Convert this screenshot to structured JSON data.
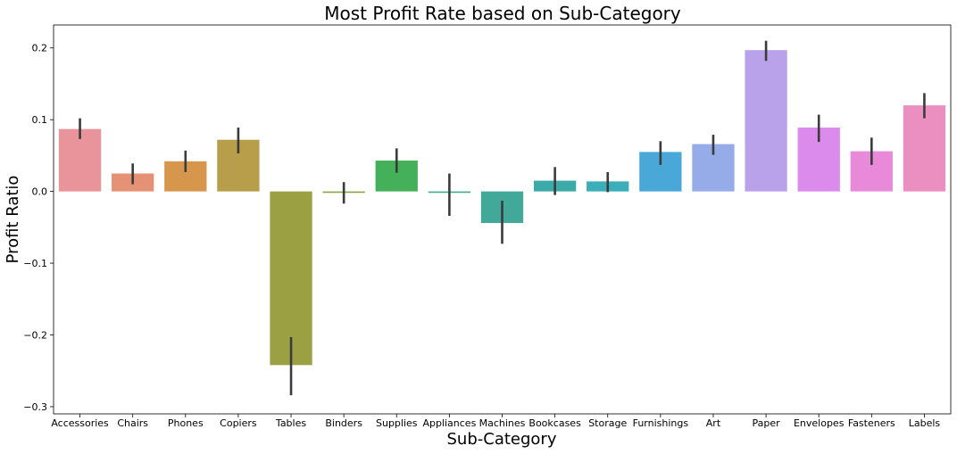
{
  "chart_data": {
    "type": "bar",
    "title": "Most Profit Rate based on Sub-Category",
    "xlabel": "Sub-Category",
    "ylabel": "Profit Ratio",
    "ylim": [
      -0.31,
      0.232
    ],
    "yticks": [
      -0.3,
      -0.2,
      -0.1,
      0.0,
      0.1,
      0.2
    ],
    "ytick_labels": [
      "−0.3",
      "−0.2",
      "−0.1",
      "0.0",
      "0.1",
      "0.2"
    ],
    "grid": false,
    "categories": [
      "Accessories",
      "Chairs",
      "Phones",
      "Copiers",
      "Tables",
      "Binders",
      "Supplies",
      "Appliances",
      "Machines",
      "Bookcases",
      "Storage",
      "Furnishings",
      "Art",
      "Paper",
      "Envelopes",
      "Fasteners",
      "Labels"
    ],
    "values": [
      0.087,
      0.025,
      0.042,
      0.072,
      -0.242,
      -0.002,
      0.043,
      -0.002,
      -0.044,
      0.015,
      0.014,
      0.055,
      0.066,
      0.197,
      0.089,
      0.056,
      0.12
    ],
    "error_low": [
      0.073,
      0.01,
      0.027,
      0.053,
      -0.284,
      -0.017,
      0.026,
      -0.034,
      -0.073,
      -0.005,
      -0.001,
      0.037,
      0.051,
      0.182,
      0.069,
      0.037,
      0.102
    ],
    "error_high": [
      0.102,
      0.039,
      0.057,
      0.089,
      -0.203,
      0.013,
      0.06,
      0.025,
      -0.013,
      0.034,
      0.027,
      0.07,
      0.079,
      0.21,
      0.107,
      0.075,
      0.137
    ],
    "colors": [
      "#e9949b",
      "#e59176",
      "#d6974d",
      "#b89e4b",
      "#9ba142",
      "#89a93f",
      "#44b05a",
      "#3fae8d",
      "#42a89a",
      "#3daaaa",
      "#3caeb9",
      "#4aa8d9",
      "#95ace9",
      "#b9a2ea",
      "#da8beb",
      "#e88ad9",
      "#ea8fbf"
    ]
  }
}
